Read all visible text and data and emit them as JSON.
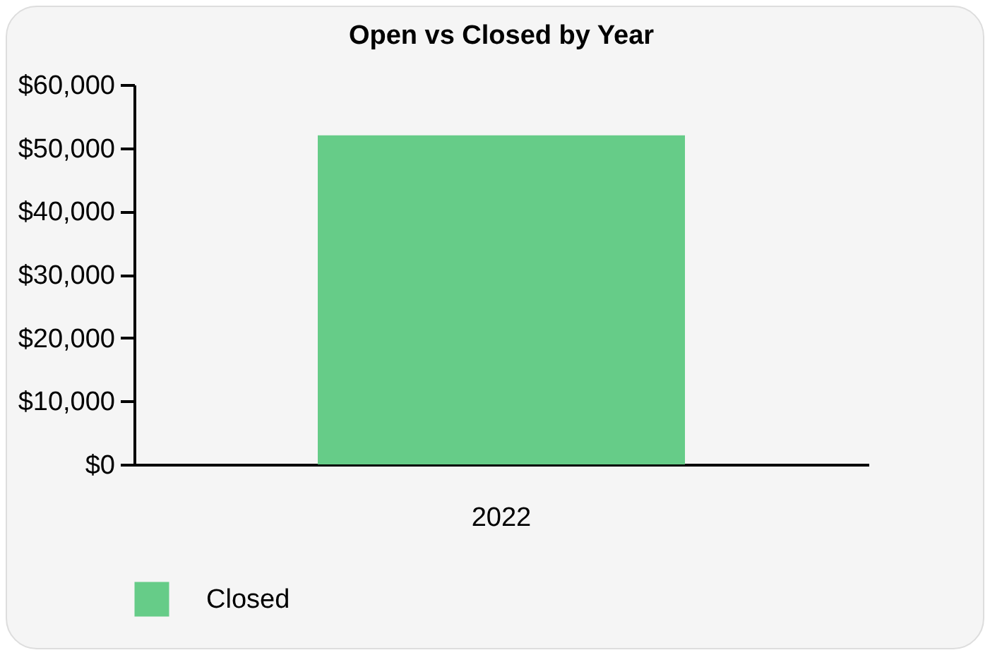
{
  "chart_data": {
    "type": "bar",
    "title": "Open vs Closed by Year",
    "categories": [
      "2022"
    ],
    "series": [
      {
        "name": "Closed",
        "color": "#66cc88",
        "values": [
          52000
        ]
      }
    ],
    "ylim": [
      0,
      60000
    ],
    "yticks": [
      {
        "value": 0,
        "label": "$0"
      },
      {
        "value": 10000,
        "label": "$10,000"
      },
      {
        "value": 20000,
        "label": "$20,000"
      },
      {
        "value": 30000,
        "label": "$30,000"
      },
      {
        "value": 40000,
        "label": "$40,000"
      },
      {
        "value": 50000,
        "label": "$50,000"
      },
      {
        "value": 60000,
        "label": "$60,000"
      }
    ],
    "grid": false,
    "legend": "bottom"
  }
}
